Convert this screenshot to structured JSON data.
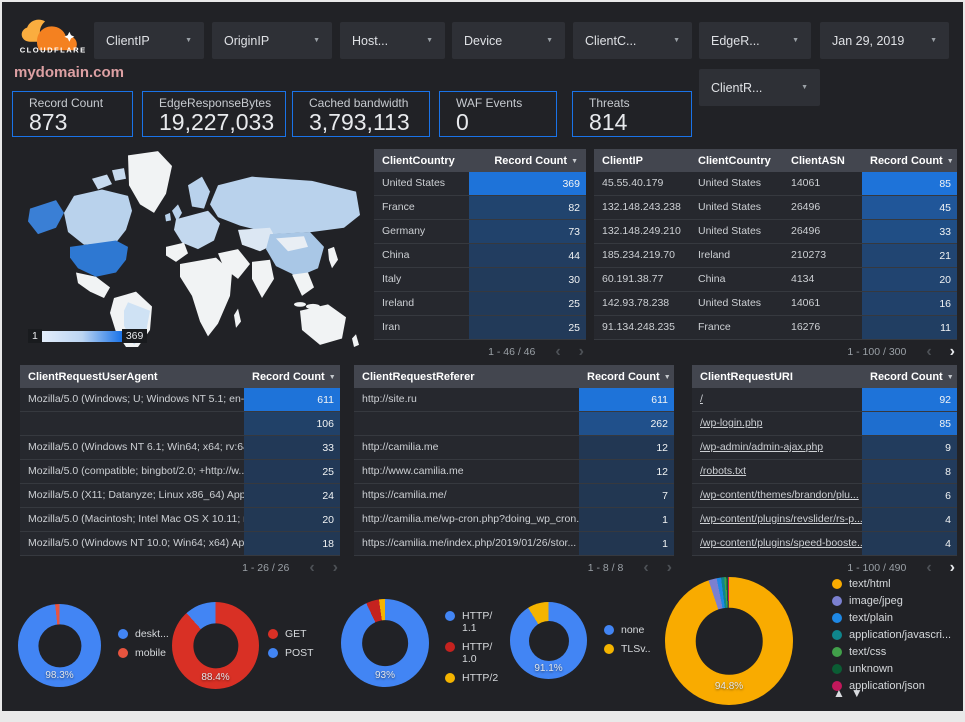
{
  "brand": {
    "logo_text": "CLOUDFLARE"
  },
  "page_title": "mydomain.com",
  "filter_chips_row1": [
    "ClientIP",
    "OriginIP",
    "Host...",
    "Device",
    "ClientC...",
    "EdgeR...",
    "Jan 29, 2019"
  ],
  "filter_chips_row2": [
    "ClientR..."
  ],
  "scorecards": [
    {
      "label": "Record Count",
      "value": "873"
    },
    {
      "label": "EdgeResponseBytes",
      "value": "19,227,033"
    },
    {
      "label": "Cached bandwidth",
      "value": "3,793,113"
    },
    {
      "label": "WAF Events",
      "value": "0"
    },
    {
      "label": "Threats",
      "value": "814"
    }
  ],
  "map": {
    "legend_min": "1",
    "legend_max": "369"
  },
  "colors": {
    "accent": "#1a73e8",
    "bar_track": "#223650",
    "bar_fill": "#1e73d9",
    "title_pink": "#dda0a3"
  },
  "tables": [
    {
      "id": "country",
      "columns": [
        "ClientCountry",
        "Record Count"
      ],
      "rows": [
        [
          "United States",
          369
        ],
        [
          "France",
          82
        ],
        [
          "Germany",
          73
        ],
        [
          "China",
          44
        ],
        [
          "Italy",
          30
        ],
        [
          "Ireland",
          25
        ],
        [
          "Iran",
          25
        ]
      ],
      "max": 369,
      "pagination": "1 - 46 / 46",
      "prev_enabled": false,
      "next_enabled": false,
      "link_rows": false
    },
    {
      "id": "ip",
      "columns": [
        "ClientIP",
        "ClientCountry",
        "ClientASN",
        "Record Count"
      ],
      "rows": [
        [
          "45.55.40.179",
          "United States",
          "14061",
          85
        ],
        [
          "132.148.243.238",
          "United States",
          "26496",
          45
        ],
        [
          "132.148.249.210",
          "United States",
          "26496",
          33
        ],
        [
          "185.234.219.70",
          "Ireland",
          "210273",
          21
        ],
        [
          "60.191.38.77",
          "China",
          "4134",
          20
        ],
        [
          "142.93.78.238",
          "United States",
          "14061",
          16
        ],
        [
          "91.134.248.235",
          "France",
          "16276",
          11
        ]
      ],
      "max": 85,
      "pagination": "1 - 100 / 300",
      "prev_enabled": false,
      "next_enabled": true,
      "link_rows": false
    },
    {
      "id": "ua",
      "columns": [
        "ClientRequestUserAgent",
        "Record Count"
      ],
      "rows": [
        [
          "Mozilla/5.0 (Windows; U; Windows NT 5.1; en-U...",
          611
        ],
        [
          "",
          106
        ],
        [
          "Mozilla/5.0 (Windows NT 6.1; Win64; x64; rv:64...",
          33
        ],
        [
          "Mozilla/5.0 (compatible; bingbot/2.0; +http://w...",
          25
        ],
        [
          "Mozilla/5.0 (X11; Datanyze; Linux x86_64) Appl...",
          24
        ],
        [
          "Mozilla/5.0 (Macintosh; Intel Mac OS X 10.11; r...",
          20
        ],
        [
          "Mozilla/5.0 (Windows NT 10.0; Win64; x64) App...",
          18
        ]
      ],
      "max": 611,
      "pagination": "1 - 26 / 26",
      "prev_enabled": false,
      "next_enabled": false,
      "link_rows": false
    },
    {
      "id": "referer",
      "columns": [
        "ClientRequestReferer",
        "Record Count"
      ],
      "rows": [
        [
          "http://site.ru",
          611
        ],
        [
          "",
          262
        ],
        [
          "http://camilia.me",
          12
        ],
        [
          "http://www.camilia.me",
          12
        ],
        [
          "https://camilia.me/",
          7
        ],
        [
          "http://camilia.me/wp-cron.php?doing_wp_cron...",
          1
        ],
        [
          "https://camilia.me/index.php/2019/01/26/stor...",
          1
        ]
      ],
      "max": 611,
      "pagination": "1 - 8 / 8",
      "prev_enabled": false,
      "next_enabled": false,
      "link_rows": false
    },
    {
      "id": "uri",
      "columns": [
        "ClientRequestURI",
        "Record Count"
      ],
      "rows": [
        [
          "/",
          92
        ],
        [
          "/wp-login.php",
          85
        ],
        [
          "/wp-admin/admin-ajax.php",
          9
        ],
        [
          "/robots.txt",
          8
        ],
        [
          "/wp-content/themes/brandon/plu...",
          6
        ],
        [
          "/wp-content/plugins/revslider/rs-p...",
          4
        ],
        [
          "/wp-content/plugins/speed-booste...",
          4
        ]
      ],
      "max": 92,
      "pagination": "1 - 100 / 490",
      "prev_enabled": false,
      "next_enabled": true,
      "link_rows": true
    }
  ],
  "chart_data": [
    {
      "type": "pie",
      "name": "donut-device-type",
      "center_label": "98.3%",
      "legend_position": "right",
      "slices": [
        {
          "name": "deskt...",
          "pct": 98.3,
          "color": "#4285f4"
        },
        {
          "name": "mobile",
          "pct": 1.7,
          "color": "#e8543f"
        }
      ]
    },
    {
      "type": "pie",
      "name": "donut-http-method",
      "center_label": "88.4%",
      "legend_position": "right",
      "slices": [
        {
          "name": "GET",
          "pct": 88.4,
          "color": "#d93025"
        },
        {
          "name": "POST",
          "pct": 11.6,
          "color": "#4285f4"
        }
      ]
    },
    {
      "type": "pie",
      "name": "donut-http-protocol",
      "center_label": "93%",
      "legend_position": "right",
      "slices": [
        {
          "name": "HTTP/1.1",
          "pct": 93,
          "color": "#4285f4"
        },
        {
          "name": "HTTP/1.0",
          "pct": 4.8,
          "color": "#c5221f"
        },
        {
          "name": "HTTP/2",
          "pct": 2.2,
          "color": "#f4b400"
        }
      ]
    },
    {
      "type": "pie",
      "name": "donut-tls-version",
      "center_label": "91.1%",
      "legend_position": "right",
      "slices": [
        {
          "name": "none",
          "pct": 91.1,
          "color": "#4285f4"
        },
        {
          "name": "TLSv..",
          "pct": 8.9,
          "color": "#f4b400"
        }
      ]
    },
    {
      "type": "pie",
      "name": "donut-content-type",
      "center_label": "94.8%",
      "legend_position": "right",
      "legend_scroll": true,
      "slices": [
        {
          "name": "text/html",
          "pct": 94.8,
          "color": "#f9ab00"
        },
        {
          "name": "image/jpeg",
          "pct": 2.1,
          "color": "#7b80d0"
        },
        {
          "name": "text/plain",
          "pct": 1.1,
          "color": "#1e88e5"
        },
        {
          "name": "application/javascri...",
          "pct": 0.8,
          "color": "#0f858c"
        },
        {
          "name": "text/css",
          "pct": 0.5,
          "color": "#41a04a"
        },
        {
          "name": "unknown",
          "pct": 0.4,
          "color": "#0b5d34"
        },
        {
          "name": "application/json",
          "pct": 0.3,
          "color": "#c2185b"
        }
      ]
    }
  ]
}
